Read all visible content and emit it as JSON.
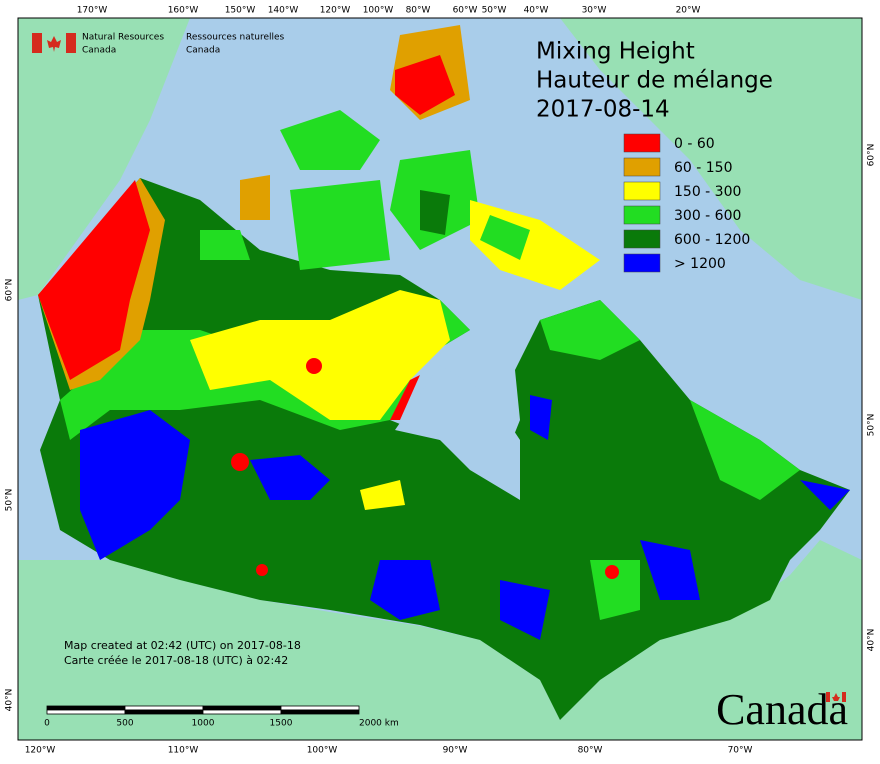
{
  "header": {
    "agency_en": [
      "Natural Resources",
      "Canada"
    ],
    "agency_fr": [
      "Ressources naturelles",
      "Canada"
    ],
    "wordmark": "Canada"
  },
  "title": [
    "Mixing Height",
    "Hauteur de mélange",
    "2017-08-14"
  ],
  "legend": [
    {
      "label": "0 - 60",
      "color": "#ff0000"
    },
    {
      "label": "60 - 150",
      "color": "#e0a000"
    },
    {
      "label": "150 - 300",
      "color": "#ffff00"
    },
    {
      "label": "300 - 600",
      "color": "#22dd22"
    },
    {
      "label": "600 - 1200",
      "color": "#0a7a0a"
    },
    {
      "label": "> 1200",
      "color": "#0000ff"
    }
  ],
  "graticule": {
    "top": [
      "170°W",
      "160°W",
      "150°W",
      "140°W",
      "120°W",
      "100°W",
      "80°W",
      "60°W",
      "50°W",
      "40°W",
      "30°W",
      "20°W"
    ],
    "bottom": [
      "120°W",
      "110°W",
      "100°W",
      "90°W",
      "80°W",
      "70°W"
    ],
    "left": [
      "60°N",
      "50°N",
      "40°N"
    ],
    "right": [
      "60°N",
      "50°N",
      "40°N"
    ]
  },
  "notes": [
    "Map created at 02:42 (UTC) on 2017-08-18",
    "Carte créée le 2017-08-18 (UTC) à 02:42"
  ],
  "scale_bar": [
    "0",
    "500",
    "1000",
    "1500",
    "2000 km"
  ]
}
